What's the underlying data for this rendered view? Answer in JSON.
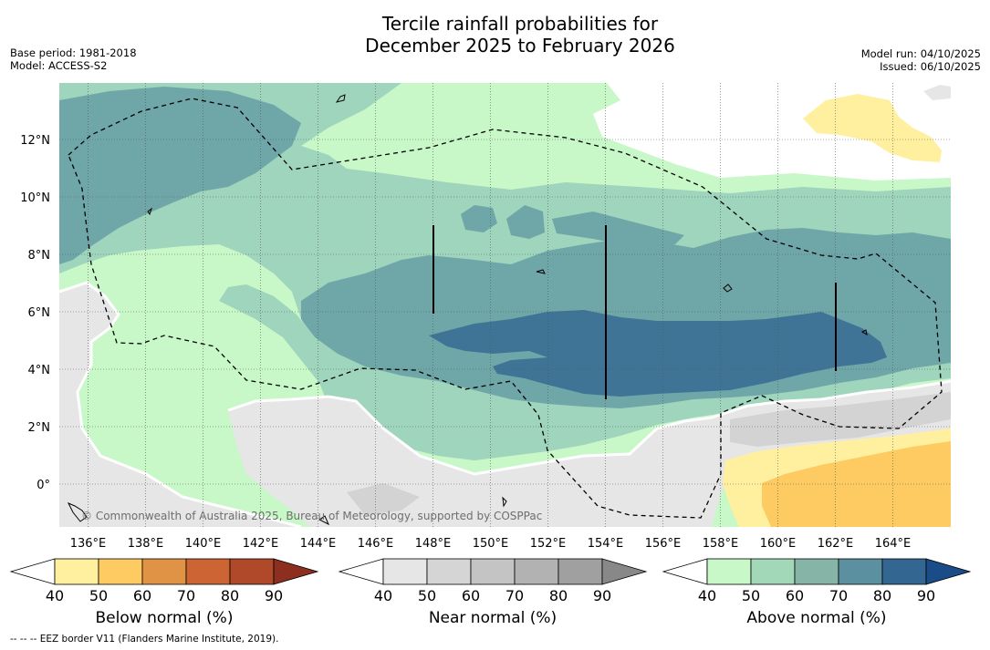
{
  "title": {
    "line1": "Tercile rainfall probabilities for",
    "line2": "December 2025 to February 2026"
  },
  "meta_left": {
    "base_period": "Base period: 1981-2018",
    "model": "Model: ACCESS-S2"
  },
  "meta_right": {
    "model_run": "Model run: 04/10/2025",
    "issued": "Issued: 06/10/2025"
  },
  "map": {
    "lat_labels": [
      "12°N",
      "10°N",
      "8°N",
      "6°N",
      "4°N",
      "2°N",
      "0°"
    ],
    "lat_values": [
      12,
      10,
      8,
      6,
      4,
      2,
      0
    ],
    "lon_labels": [
      "136°E",
      "138°E",
      "140°E",
      "142°E",
      "144°E",
      "146°E",
      "148°E",
      "150°E",
      "152°E",
      "154°E",
      "156°E",
      "158°E",
      "160°E",
      "162°E",
      "164°E"
    ],
    "lon_values": [
      136,
      138,
      140,
      142,
      144,
      146,
      148,
      150,
      152,
      154,
      156,
      158,
      160,
      162,
      164
    ],
    "copyright": "© Commonwealth of Australia 2025, Bureau of Meteorology, supported by COSPPac"
  },
  "colorbars": [
    {
      "label": "Below normal (%)",
      "ticks": [
        "40",
        "50",
        "60",
        "70",
        "80",
        "90"
      ],
      "colors": [
        "#ffffff",
        "#fff0a0",
        "#fdcb62",
        "#e09245",
        "#cc6434",
        "#b0482a",
        "#8c2f1e"
      ]
    },
    {
      "label": "Near normal (%)",
      "ticks": [
        "40",
        "50",
        "60",
        "70",
        "80",
        "90"
      ],
      "colors": [
        "#ffffff",
        "#e6e6e6",
        "#d5d5d5",
        "#c4c4c4",
        "#b2b2b2",
        "#a0a0a0",
        "#888888"
      ]
    },
    {
      "label": "Above normal (%)",
      "ticks": [
        "40",
        "50",
        "60",
        "70",
        "80",
        "90"
      ],
      "colors": [
        "#ffffff",
        "#c8f7c8",
        "#a2d8b8",
        "#86b5a8",
        "#5a90a0",
        "#336690",
        "#1a4c88"
      ]
    }
  ],
  "footer": "--  --  -- EEZ border V11 (Flanders Marine Institute, 2019).",
  "colors": {
    "above_40": "#c8f7c8",
    "above_50": "#9fd4bd",
    "above_60": "#6fa6a8",
    "above_70": "#3f7497",
    "near_40": "#e6e6e6",
    "near_50": "#d3d3d3",
    "below_40": "#fff0a0",
    "below_50": "#fdcb62"
  }
}
